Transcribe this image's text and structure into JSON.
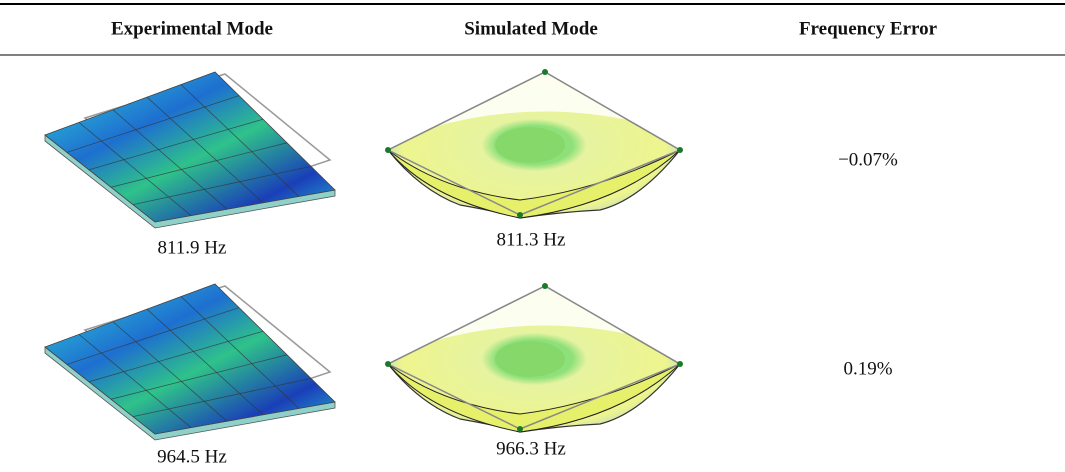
{
  "table": {
    "headers": [
      "Experimental Mode",
      "Simulated Mode",
      "Frequency Error"
    ],
    "rows": [
      [
        "811.9 Hz",
        "811.3 Hz",
        "−0.07%"
      ],
      [
        "964.5 Hz",
        "966.3 Hz",
        "0.19%"
      ]
    ]
  }
}
